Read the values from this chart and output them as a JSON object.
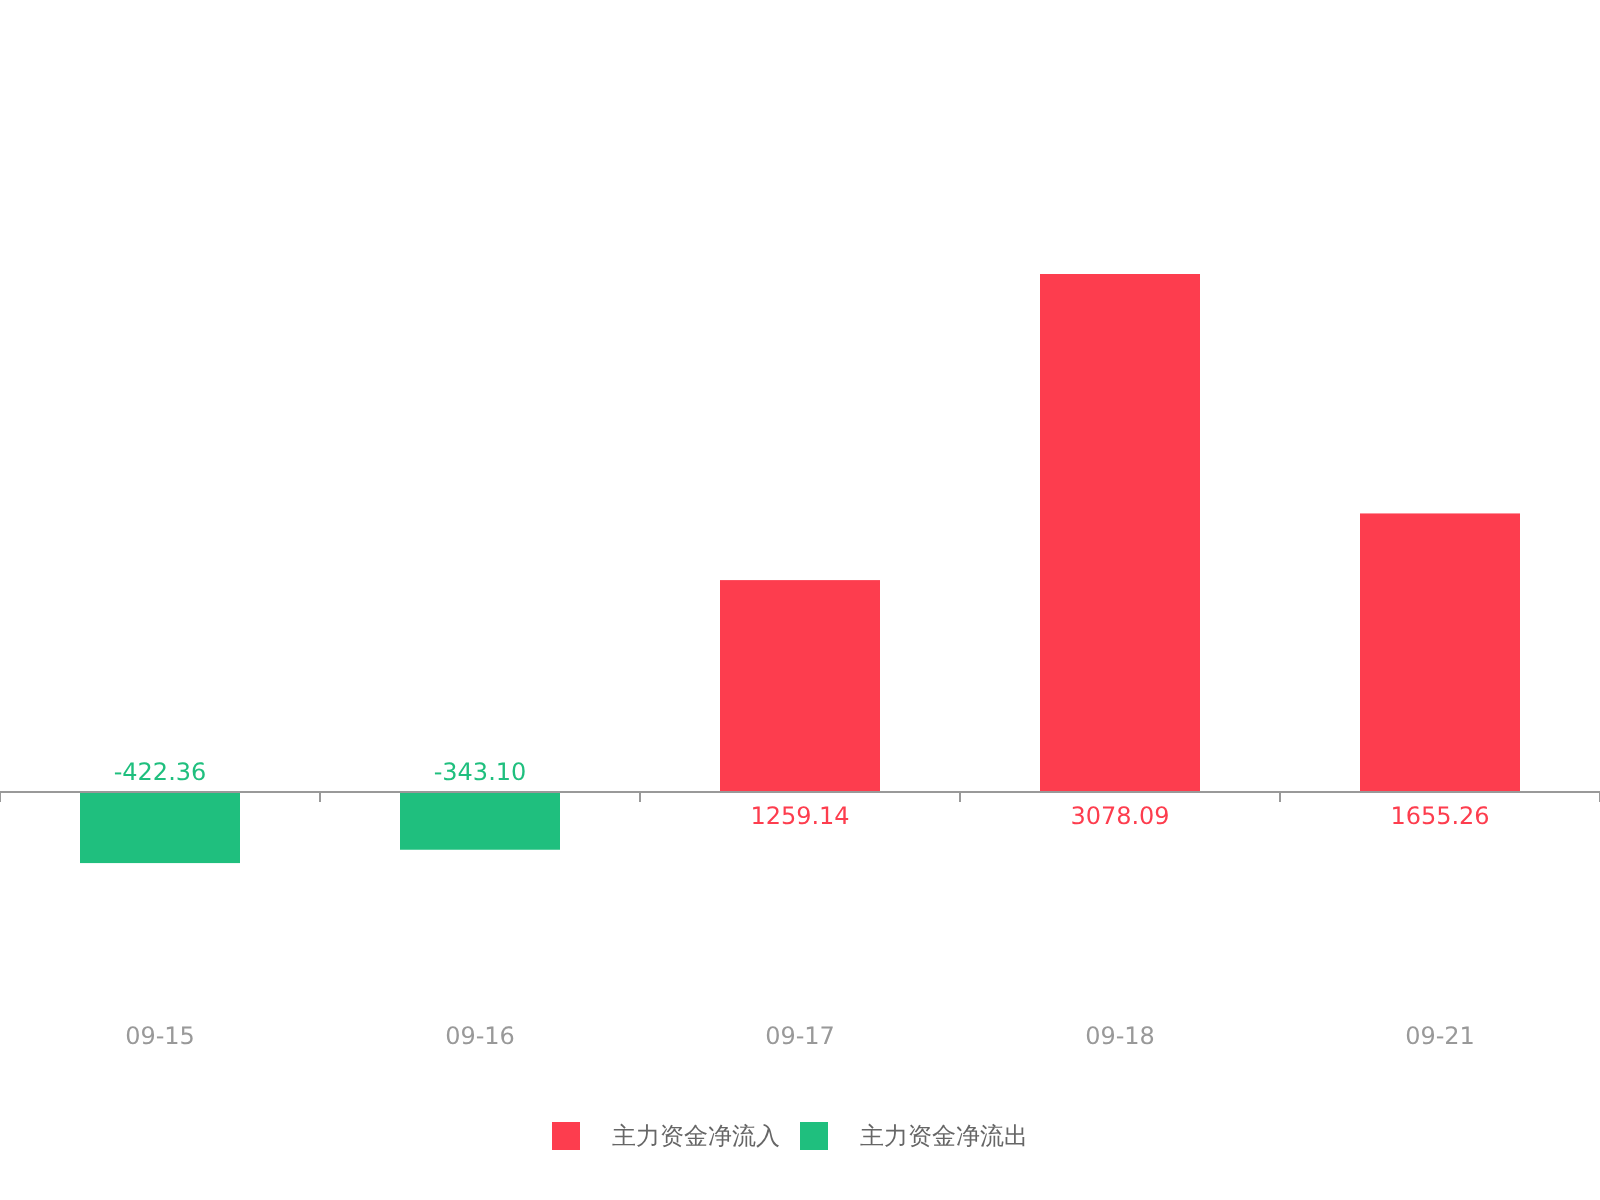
{
  "chart_data": {
    "type": "bar",
    "stacked": true,
    "categories": [
      "09-15",
      "09-16",
      "09-17",
      "09-18",
      "09-21"
    ],
    "legend": "bottom",
    "series": [
      {
        "name": "主力资金净流入",
        "color": "#fd3d4e",
        "values": [
          null,
          null,
          1259.14,
          3078.09,
          1655.26
        ],
        "value_labels": [
          null,
          null,
          "1259.14",
          "3078.09",
          "1655.26"
        ]
      },
      {
        "name": "主力资金净流出",
        "color": "#1fbf7e",
        "values": [
          -422.36,
          -343.1,
          null,
          null,
          null
        ],
        "value_labels": [
          "-422.36",
          "-343.10",
          null,
          null,
          null
        ]
      }
    ]
  }
}
